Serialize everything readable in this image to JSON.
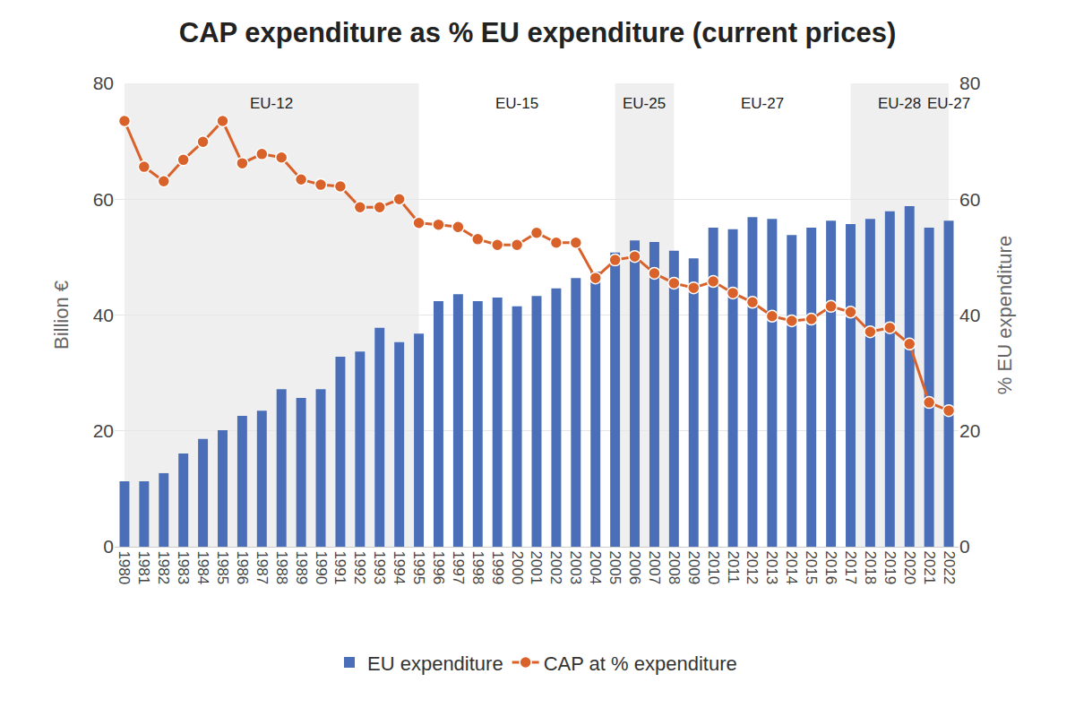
{
  "chart_data": {
    "type": "bar",
    "title": "CAP expenditure as % EU expenditure (current prices)",
    "categories": [
      "1980",
      "1981",
      "1982",
      "1983",
      "1984",
      "1985",
      "1986",
      "1987",
      "1988",
      "1989",
      "1990",
      "1991",
      "1992",
      "1993",
      "1994",
      "1995",
      "1996",
      "1997",
      "1998",
      "1999",
      "2000",
      "2001",
      "2002",
      "2003",
      "2004",
      "2005",
      "2006",
      "2007",
      "2008",
      "2009",
      "2010",
      "2011",
      "2012",
      "2013",
      "2014",
      "2015",
      "2016",
      "2017",
      "2018",
      "2019",
      "2020",
      "2021",
      "2022"
    ],
    "series": [
      {
        "name": "EU expenditure",
        "type": "bar",
        "color": "#4a6fb8",
        "values": [
          11.3,
          11.3,
          12.7,
          16.1,
          18.6,
          20.1,
          22.6,
          23.5,
          27.2,
          25.7,
          27.2,
          32.8,
          33.7,
          37.8,
          35.3,
          36.8,
          42.4,
          43.6,
          42.4,
          43.0,
          41.5,
          43.3,
          44.6,
          46.4,
          47.5,
          50.8,
          52.9,
          52.6,
          51.1,
          49.8,
          55.1,
          54.8,
          56.9,
          56.6,
          53.8,
          55.1,
          56.3,
          55.7,
          56.6,
          57.9,
          58.8,
          55.1,
          56.3
        ]
      },
      {
        "name": "CAP at % expenditure",
        "type": "line",
        "axis": "y2",
        "color": "#d9622b",
        "marker": "circle",
        "values": [
          73.5,
          65.6,
          63.1,
          66.8,
          69.9,
          73.5,
          66.2,
          67.8,
          67.2,
          63.4,
          62.5,
          62.2,
          58.6,
          58.6,
          60.0,
          55.9,
          55.6,
          55.2,
          53.1,
          52.1,
          52.1,
          54.2,
          52.5,
          52.5,
          46.4,
          49.5,
          50.1,
          47.2,
          45.5,
          44.7,
          45.8,
          43.8,
          42.2,
          39.8,
          39.0,
          39.3,
          41.5,
          40.5,
          37.1,
          37.8,
          35.0,
          24.9,
          23.5
        ]
      }
    ],
    "ylabel": "Billion €",
    "y2label": "% EU expenditure",
    "ylim": [
      0,
      80
    ],
    "yticks": [
      0,
      20,
      40,
      60,
      80
    ],
    "y2lim": [
      0,
      80
    ],
    "y2ticks": [
      0,
      20,
      40,
      60,
      80
    ],
    "grid": true,
    "legend": "bottom",
    "periods": [
      {
        "label": "EU-12",
        "start": "1980",
        "end": "1995"
      },
      {
        "label": "EU-15",
        "start": "1995",
        "end": "2005"
      },
      {
        "label": "EU-25",
        "start": "2005",
        "end": "2008"
      },
      {
        "label": "EU-27",
        "start": "2008",
        "end": "2017"
      },
      {
        "label": "EU-28",
        "start": "2017",
        "end": "2022"
      },
      {
        "label": "EU-27",
        "start": "2022",
        "end": "2022"
      }
    ]
  }
}
